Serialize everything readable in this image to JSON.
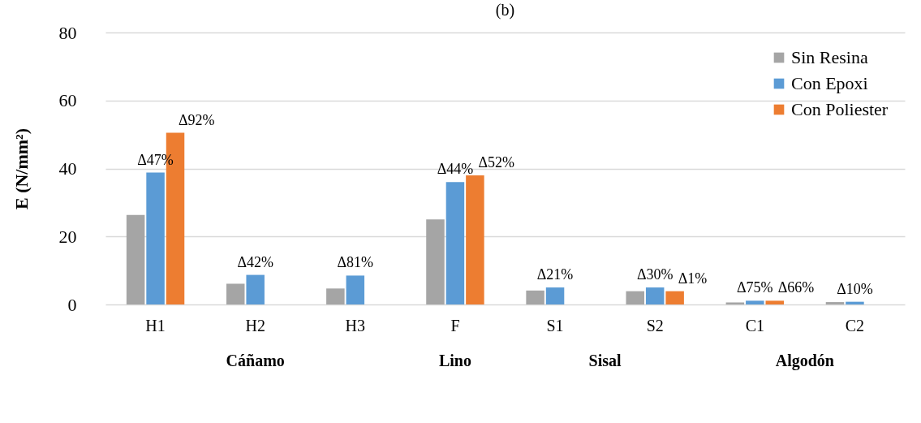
{
  "chart_data": {
    "type": "bar",
    "title": "(b)",
    "ylabel": "E (N/mm²)",
    "categories": [
      "H1",
      "H2",
      "H3",
      "F",
      "S1",
      "S2",
      "C1",
      "C2"
    ],
    "series": [
      {
        "name": "Sin Resina",
        "color": "#a5a5a5",
        "values": [
          26.3,
          6.1,
          4.7,
          25,
          4.1,
          3.9,
          0.6,
          0.7
        ]
      },
      {
        "name": "Con Epoxi",
        "color": "#5b9bd5",
        "values": [
          38.8,
          8.7,
          8.5,
          36,
          5,
          5,
          1.1,
          0.8
        ],
        "value_labels": [
          "Δ47%",
          "Δ42%",
          "Δ81%",
          "Δ44%",
          "Δ21%",
          "Δ30%",
          "Δ75%",
          "Δ10%"
        ]
      },
      {
        "name": "Con Poliester",
        "color": "#ed7d31",
        "values": [
          50.5,
          null,
          null,
          38,
          null,
          3.9,
          1.1,
          null
        ],
        "value_labels": [
          "Δ92%",
          null,
          null,
          "Δ52%",
          null,
          "Δ1%",
          "Δ66%",
          null
        ]
      }
    ],
    "annotations": [
      "Cáñamo",
      "Lino",
      "Sisal",
      "Algodón"
    ],
    "ylim": [
      0,
      80
    ],
    "yticks": [
      0,
      20,
      40,
      60,
      80
    ],
    "grid": "y",
    "legend": "top right"
  }
}
